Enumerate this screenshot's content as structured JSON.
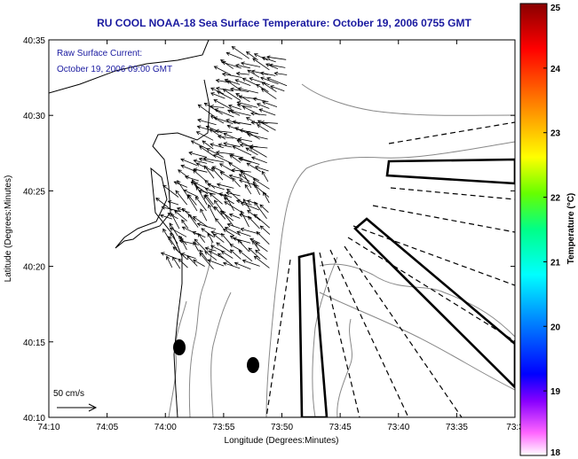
{
  "title": "RU COOL  NOAA-18  Sea Surface Temperature:  October 19, 2006 0755 GMT",
  "annotation": {
    "line1": "Raw Surface Current:",
    "line2": "October 19, 2006 09:00 GMT"
  },
  "scale_label": "50 cm/s",
  "chart_data": {
    "type": "map",
    "xlabel": "Longitude (Degrees:Minutes)",
    "ylabel": "Latitude (Degrees:Minutes)",
    "x_ticks": [
      "74:10",
      "74:05",
      "74:00",
      "73:55",
      "73:50",
      "73:45",
      "73:40",
      "73:35",
      "73:3"
    ],
    "y_ticks": [
      "40:35",
      "40:30",
      "40:25",
      "40:20",
      "40:15",
      "40:10"
    ],
    "colorbar": {
      "label": "Temperature (°C)",
      "ticks": [
        "25",
        "24",
        "23",
        "22",
        "21",
        "20",
        "19",
        "18"
      ],
      "min": 18,
      "max": 25
    },
    "colors": {
      "coast": "#000000",
      "bathymetry": "#888888",
      "vectors": "#000000",
      "title": "#1a1aa0"
    }
  }
}
